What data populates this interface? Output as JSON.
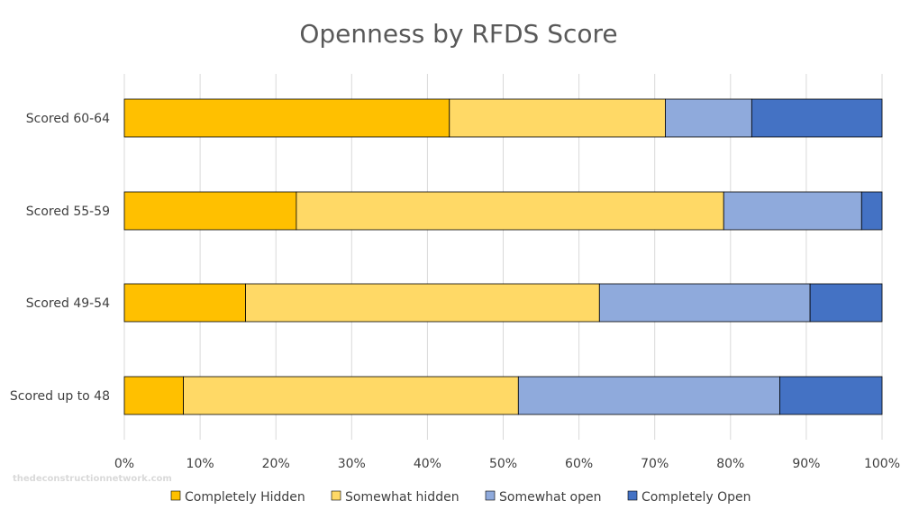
{
  "watermark": "thedeconstructionnetwork.com",
  "chart_data": {
    "type": "bar",
    "orientation": "horizontal",
    "stacked": "percent",
    "title": "Openness by RFDS Score",
    "xlabel": "",
    "ylabel": "",
    "xlim": [
      0,
      100
    ],
    "x_ticks": [
      "0%",
      "10%",
      "20%",
      "30%",
      "40%",
      "50%",
      "60%",
      "70%",
      "80%",
      "90%",
      "100%"
    ],
    "grid": "vertical",
    "legend_position": "bottom",
    "categories": [
      "Scored 60-64",
      "Scored 55-59",
      "Scored 49-54",
      "Scored up to 48"
    ],
    "series": [
      {
        "name": "Completely Hidden",
        "color": "#FFC000",
        "values": [
          42.9,
          22.7,
          16.0,
          7.8
        ]
      },
      {
        "name": "Somewhat hidden",
        "color": "#FFD966",
        "values": [
          28.5,
          56.4,
          46.7,
          44.2
        ]
      },
      {
        "name": "Somewhat open",
        "color": "#8FAADC",
        "values": [
          11.4,
          18.2,
          27.8,
          34.5
        ]
      },
      {
        "name": "Completely Open",
        "color": "#4472C4",
        "values": [
          17.2,
          2.7,
          9.5,
          13.5
        ]
      }
    ]
  }
}
